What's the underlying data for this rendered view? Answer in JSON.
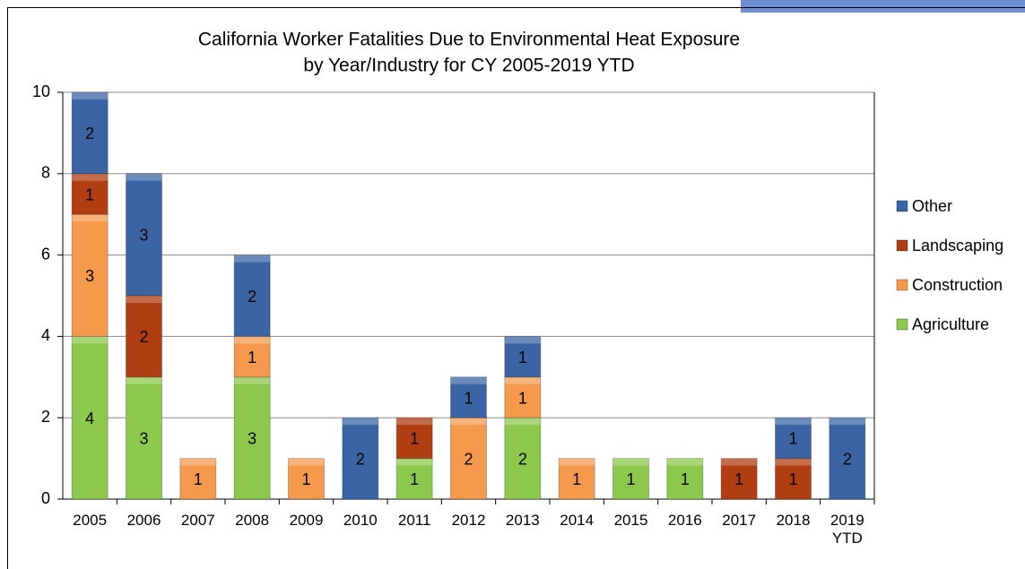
{
  "chart_data": {
    "type": "stacked-bar",
    "title": "California Worker Fatalities Due to Environmental Heat Exposure",
    "subtitle": "by Year/Industry for CY 2005-2019 YTD",
    "categories": [
      "2005",
      "2006",
      "2007",
      "2008",
      "2009",
      "2010",
      "2011",
      "2012",
      "2013",
      "2014",
      "2015",
      "2016",
      "2017",
      "2018",
      "2019 YTD"
    ],
    "series": [
      {
        "name": "Agriculture",
        "color": "#8cc84b",
        "values": [
          4,
          3,
          0,
          3,
          0,
          0,
          1,
          0,
          2,
          0,
          1,
          1,
          0,
          0,
          0
        ]
      },
      {
        "name": "Construction",
        "color": "#f59a4c",
        "values": [
          3,
          0,
          1,
          1,
          1,
          0,
          0,
          2,
          1,
          1,
          0,
          0,
          0,
          0,
          0
        ]
      },
      {
        "name": "Landscaping",
        "color": "#b13d12",
        "values": [
          1,
          2,
          0,
          0,
          0,
          0,
          1,
          0,
          0,
          0,
          0,
          0,
          1,
          1,
          0
        ]
      },
      {
        "name": "Other",
        "color": "#3a64a3",
        "values": [
          2,
          3,
          0,
          2,
          0,
          2,
          0,
          1,
          1,
          0,
          0,
          0,
          0,
          1,
          2
        ]
      }
    ],
    "ylim": [
      0,
      10
    ],
    "yticks": [
      0,
      2,
      4,
      6,
      8,
      10
    ],
    "grid": true,
    "legend": "right"
  }
}
